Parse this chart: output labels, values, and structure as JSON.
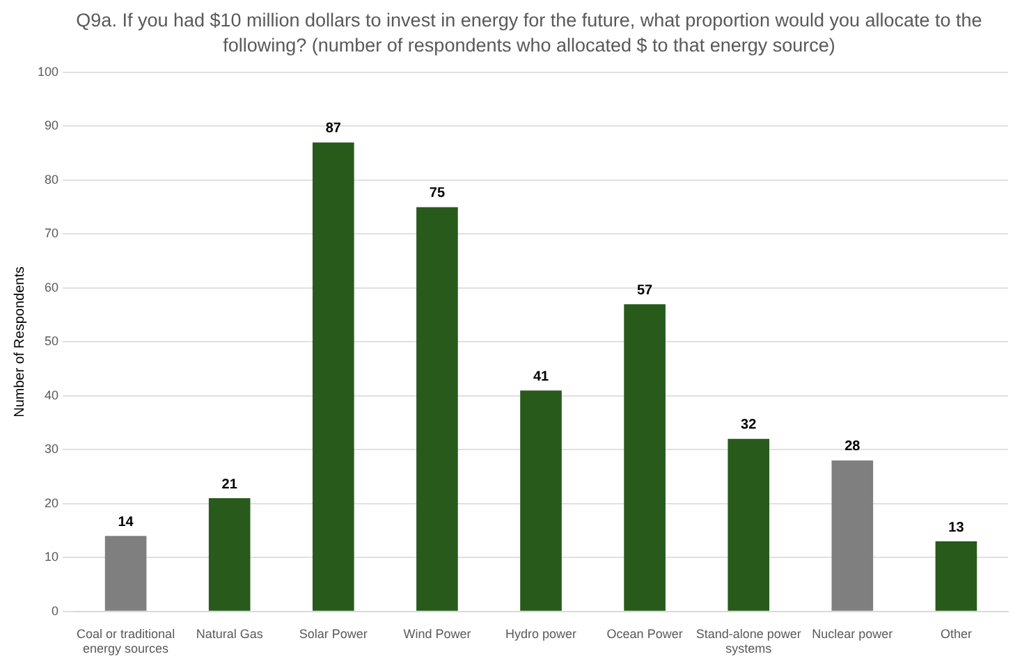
{
  "chart_data": {
    "type": "bar",
    "title": "Q9a. If you had $10 million dollars to invest in energy for the future, what proportion would you allocate to the following?  (number of respondents who allocated $ to that energy source)",
    "ylabel": "Number of Respondents",
    "categories": [
      "Coal or traditional energy sources",
      "Natural Gas",
      "Solar Power",
      "Wind Power",
      "Hydro power",
      "Ocean Power",
      "Stand-alone power systems",
      "Nuclear power",
      "Other"
    ],
    "values": [
      14,
      21,
      87,
      75,
      41,
      57,
      32,
      28,
      13
    ],
    "colors": [
      "#7f7f7f",
      "#285a1c",
      "#285a1c",
      "#285a1c",
      "#285a1c",
      "#285a1c",
      "#285a1c",
      "#7f7f7f",
      "#285a1c"
    ],
    "ylim": [
      0,
      100
    ],
    "yticks": [
      0,
      10,
      20,
      30,
      40,
      50,
      60,
      70,
      80,
      90,
      100
    ],
    "grid": "y",
    "data_labels": true
  }
}
